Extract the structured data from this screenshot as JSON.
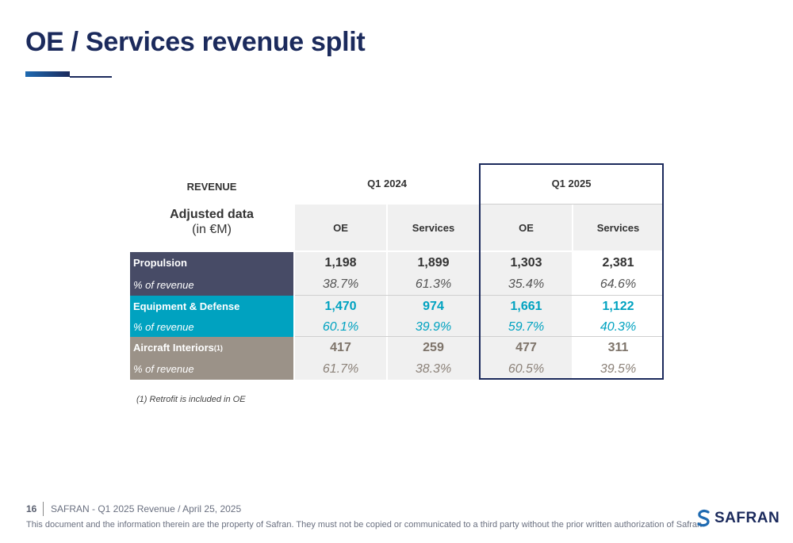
{
  "title": "OE / Services revenue split",
  "table": {
    "revenue_label": "REVENUE",
    "adjusted_label": "Adjusted data",
    "unit_label": "(in €M)",
    "period_1": "Q1 2024",
    "period_2": "Q1 2025",
    "col_oe": "OE",
    "col_services": "Services",
    "rows": [
      {
        "label": "Propulsion",
        "oe_2024": "1,198",
        "services_2024": "1,899",
        "oe_2025": "1,303",
        "services_2025": "2,381",
        "pct_label": "% of revenue",
        "pct_oe_2024": "38.7%",
        "pct_services_2024": "61.3%",
        "pct_oe_2025": "35.4%",
        "pct_services_2025": "64.6%"
      },
      {
        "label": "Equipment & Defense",
        "oe_2024": "1,470",
        "services_2024": "974",
        "oe_2025": "1,661",
        "services_2025": "1,122",
        "pct_label": "% of revenue",
        "pct_oe_2024": "60.1%",
        "pct_services_2024": "39.9%",
        "pct_oe_2025": "59.7%",
        "pct_services_2025": "40.3%"
      },
      {
        "label": "Aircraft Interiors",
        "label_sup": "(1)",
        "oe_2024": "417",
        "services_2024": "259",
        "oe_2025": "477",
        "services_2025": "311",
        "pct_label": "% of revenue",
        "pct_oe_2024": "61.7%",
        "pct_services_2024": "38.3%",
        "pct_oe_2025": "60.5%",
        "pct_services_2025": "39.5%"
      }
    ]
  },
  "footnote": "(1) Retrofit is included in OE",
  "footer": {
    "page_number": "16",
    "text": "SAFRAN - Q1 2025 Revenue / April 25, 2025",
    "legal": "This document and the information therein are the property of Safran. They must not be copied or communicated to a third party without the prior written authorization of Safran",
    "logo_text": "SAFRAN"
  },
  "colors": {
    "title": "#1b2a5c",
    "propulsion": "#474b66",
    "equipment": "#00a2c0",
    "interiors": "#9b9288",
    "propulsion_text": "#333333",
    "equipment_text": "#00a2c0",
    "interiors_text": "#8c8279"
  }
}
